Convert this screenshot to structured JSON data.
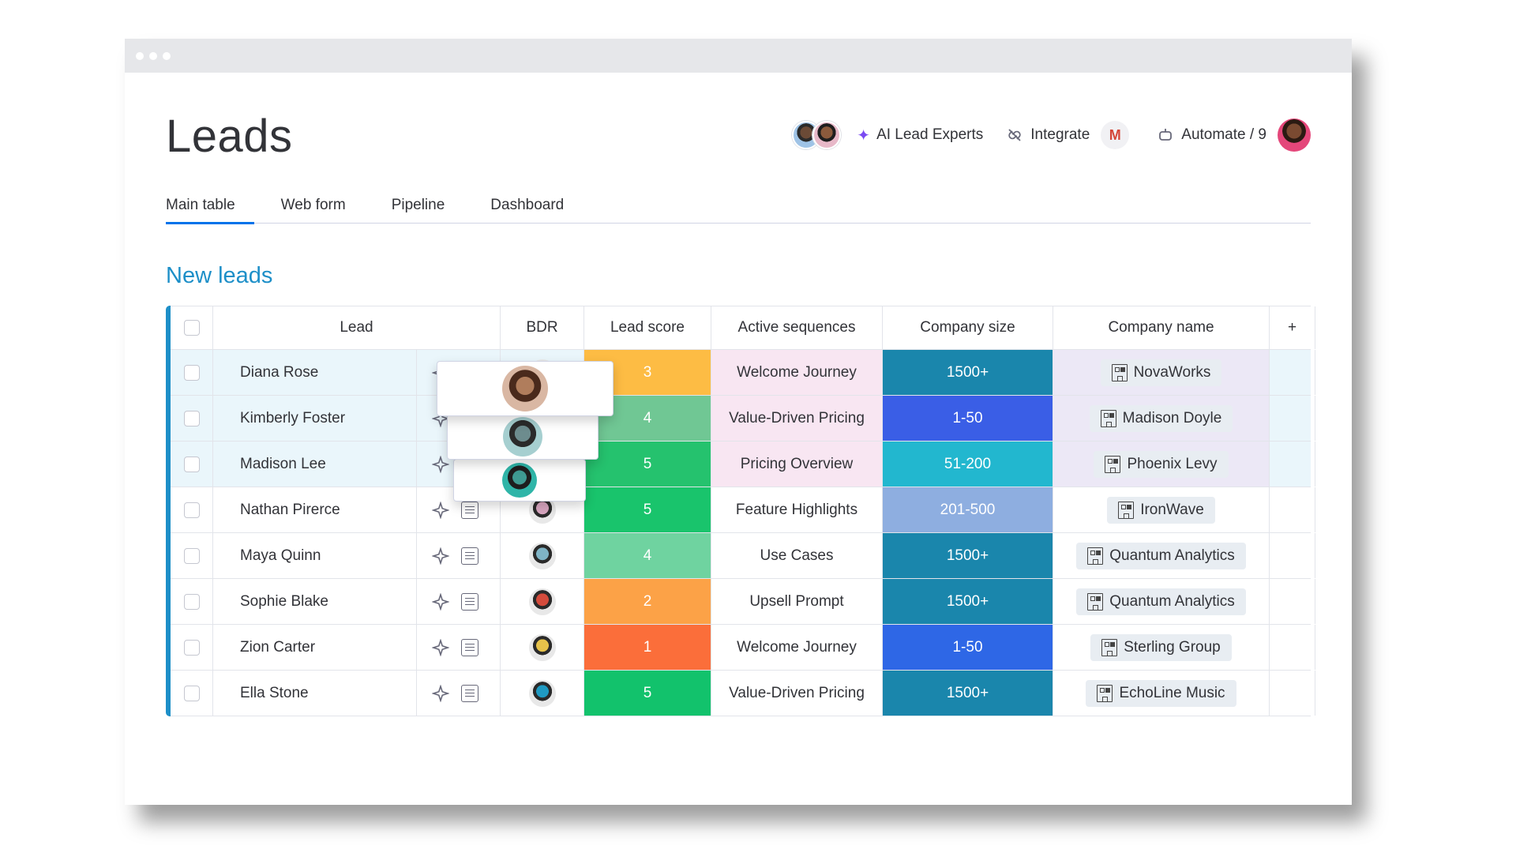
{
  "page": {
    "title": "Leads"
  },
  "header": {
    "ai_label": "AI Lead Experts",
    "integrate_label": "Integrate",
    "gmail_letter": "M",
    "automate_label": "Automate / 9"
  },
  "tabs": [
    {
      "label": "Main table",
      "active": true
    },
    {
      "label": "Web form",
      "active": false
    },
    {
      "label": "Pipeline",
      "active": false
    },
    {
      "label": "Dashboard",
      "active": false
    }
  ],
  "group": {
    "title": "New leads",
    "color": "#1d8fc8"
  },
  "columns": {
    "lead": "Lead",
    "bdr": "BDR",
    "score": "Lead score",
    "sequences": "Active sequences",
    "size": "Company size",
    "company": "Company name",
    "add": "+"
  },
  "rows": [
    {
      "lead": "Diana Rose",
      "score": "3",
      "score_color": "#fdbc44",
      "sequence": "Welcome Journey",
      "size": "1500+",
      "size_color": "#1a86ac",
      "company": "NovaWorks",
      "bdr_color": "#8a5a3b",
      "highlighted": true
    },
    {
      "lead": "Kimberly Foster",
      "score": "4",
      "score_color": "#70c794",
      "sequence": "Value-Driven Pricing",
      "size": "1-50",
      "size_color": "#3a5ee6",
      "company": "Madison Doyle",
      "bdr_color": "#4a7a80",
      "highlighted": true
    },
    {
      "lead": "Madison Lee",
      "score": "5",
      "score_color": "#25c26e",
      "sequence": "Pricing Overview",
      "size": "51-200",
      "size_color": "#22b7cf",
      "company": "Phoenix Levy",
      "bdr_color": "#2fa39a",
      "highlighted": true
    },
    {
      "lead": "Nathan Pirerce",
      "score": "5",
      "score_color": "#19c46c",
      "sequence": "Feature Highlights",
      "size": "201-500",
      "size_color": "#8eaee0",
      "company": "IronWave",
      "bdr_color": "#d9a6c0",
      "highlighted": false
    },
    {
      "lead": "Maya Quinn",
      "score": "4",
      "score_color": "#6fd3a0",
      "sequence": "Use Cases",
      "size": "1500+",
      "size_color": "#1a86ac",
      "company": "Quantum Analytics",
      "bdr_color": "#7fb4c6",
      "highlighted": false
    },
    {
      "lead": "Sophie Blake",
      "score": "2",
      "score_color": "#fca247",
      "sequence": "Upsell Prompt",
      "size": "1500+",
      "size_color": "#1a86ac",
      "company": "Quantum Analytics",
      "bdr_color": "#d44b3c",
      "highlighted": false
    },
    {
      "lead": "Zion Carter",
      "score": "1",
      "score_color": "#fb6e3a",
      "sequence": "Welcome Journey",
      "size": "1-50",
      "size_color": "#2e67e6",
      "company": "Sterling Group",
      "bdr_color": "#e6c24a",
      "highlighted": false
    },
    {
      "lead": "Ella Stone",
      "score": "5",
      "score_color": "#12c26c",
      "sequence": "Value-Driven Pricing",
      "size": "1500+",
      "size_color": "#1a86ac",
      "company": "EchoLine Music",
      "bdr_color": "#1f9ac2",
      "highlighted": false
    }
  ]
}
